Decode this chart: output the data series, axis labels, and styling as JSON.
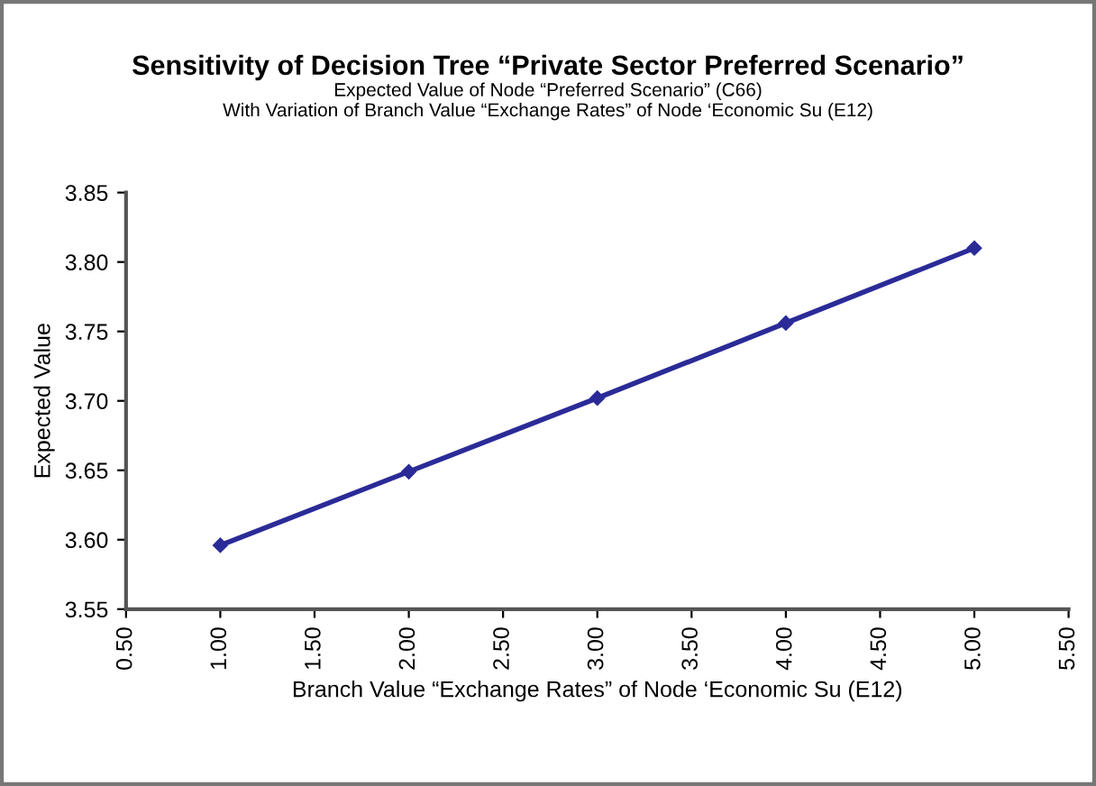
{
  "chart_data": {
    "type": "line",
    "title": "Sensitivity of Decision Tree “Private Sector Preferred Scenario”",
    "subtitle": "Expected Value of Node “Preferred Scenario” (C66)\nWith Variation of Branch Value “Exchange Rates” of Node ‘Economic Su (E12)",
    "xlabel": "Branch Value “Exchange Rates” of Node ‘Economic Su (E12)",
    "ylabel": "Expected Value",
    "x": [
      1,
      2,
      3,
      4,
      5
    ],
    "series": [
      {
        "color": "#2b2b98",
        "values": [
          3.596,
          3.649,
          3.702,
          3.756,
          3.81
        ]
      }
    ],
    "xlim": [
      0.5,
      5.5
    ],
    "xticks": [
      {
        "value": 0.5,
        "label": "0.50"
      },
      {
        "value": 1,
        "label": "1.00"
      },
      {
        "value": 1.5,
        "label": "1.50"
      },
      {
        "value": 2,
        "label": "2.00"
      },
      {
        "value": 2.5,
        "label": "2.50"
      },
      {
        "value": 3,
        "label": "3.00"
      },
      {
        "value": 3.5,
        "label": "3.50"
      },
      {
        "value": 4,
        "label": "4.00"
      },
      {
        "value": 4.5,
        "label": "4.50"
      },
      {
        "value": 5,
        "label": "5.00"
      },
      {
        "value": 5.5,
        "label": "5.50"
      }
    ],
    "ylim": [
      3.55,
      3.85
    ],
    "yticks": [
      {
        "value": 3.55,
        "label": "3.55"
      },
      {
        "value": 3.6,
        "label": "3.60"
      },
      {
        "value": 3.65,
        "label": "3.65"
      },
      {
        "value": 3.7,
        "label": "3.70"
      },
      {
        "value": 3.75,
        "label": "3.75"
      },
      {
        "value": 3.8,
        "label": "3.80"
      },
      {
        "value": 3.85,
        "label": "3.85"
      }
    ],
    "grid": false,
    "legend": false,
    "marker": "diamond",
    "line_style": "solid"
  }
}
